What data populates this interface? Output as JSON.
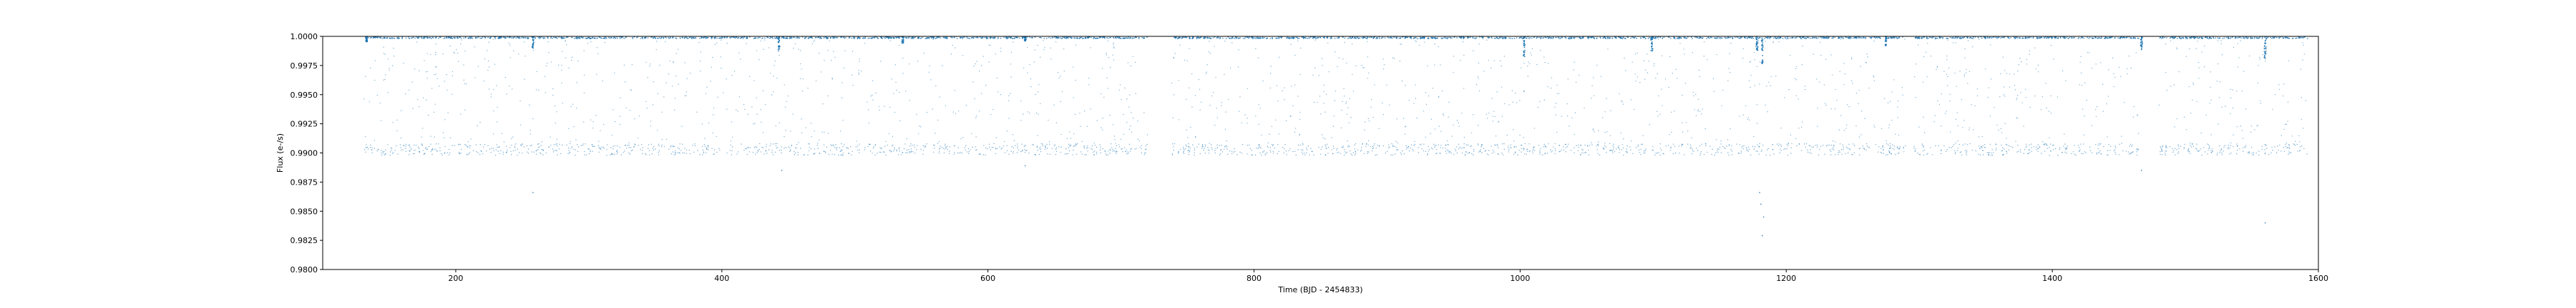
{
  "chart_data": {
    "type": "scatter",
    "title": "",
    "xlabel": "Time (BJD - 2454833)",
    "ylabel": "Flux (e-/s)",
    "xlim": [
      100,
      1600
    ],
    "ylim": [
      0.98,
      1.0
    ],
    "xticks": [
      200,
      400,
      600,
      800,
      1000,
      1200,
      1400,
      1600
    ],
    "yticks": [
      0.98,
      0.9825,
      0.985,
      0.9875,
      0.99,
      0.9925,
      0.995,
      0.9975,
      1.0
    ],
    "xtick_labels": [
      "200",
      "400",
      "600",
      "800",
      "1000",
      "1200",
      "1400",
      "1600"
    ],
    "ytick_labels": [
      "0.9800",
      "0.9825",
      "0.9850",
      "0.9875",
      "0.9900",
      "0.9925",
      "0.9950",
      "0.9975",
      "1.0000"
    ],
    "grid": false,
    "legend": "none",
    "marker_color": "#1f77b4",
    "series": [
      {
        "segments": [
          [
            131,
            720
          ],
          [
            738,
            1290
          ],
          [
            1296,
            1465
          ],
          [
            1480,
            1592
          ]
        ],
        "baseline": 0.99995,
        "baseline_spread": 7e-05,
        "scatter_band": [
          0.9901,
          0.9999
        ],
        "scatter_floor": 0.9903,
        "transits": [
          {
            "x": 133,
            "depth": 0.0005
          },
          {
            "x": 258,
            "depth": 0.0011
          },
          {
            "x": 443,
            "depth": 0.0013
          },
          {
            "x": 536,
            "depth": 0.0006
          },
          {
            "x": 628,
            "depth": 0.0004
          },
          {
            "x": 1003,
            "depth": 0.0021
          },
          {
            "x": 1099,
            "depth": 0.0013
          },
          {
            "x": 1178,
            "depth": 0.0012
          },
          {
            "x": 1182,
            "depth": 0.0024
          },
          {
            "x": 1275,
            "depth": 0.0008
          },
          {
            "x": 1467,
            "depth": 0.0012
          },
          {
            "x": 1560,
            "depth": 0.0021
          }
        ],
        "outliers": [
          {
            "x": 258,
            "y": 0.9866
          },
          {
            "x": 445,
            "y": 0.9885
          },
          {
            "x": 628,
            "y": 0.9889
          },
          {
            "x": 1003,
            "y": 0.9953
          },
          {
            "x": 1180,
            "y": 0.9866
          },
          {
            "x": 1181,
            "y": 0.9856
          },
          {
            "x": 1183,
            "y": 0.9845
          },
          {
            "x": 1182,
            "y": 0.9829
          },
          {
            "x": 1467,
            "y": 0.9885
          },
          {
            "x": 1560,
            "y": 0.984
          }
        ]
      }
    ]
  }
}
